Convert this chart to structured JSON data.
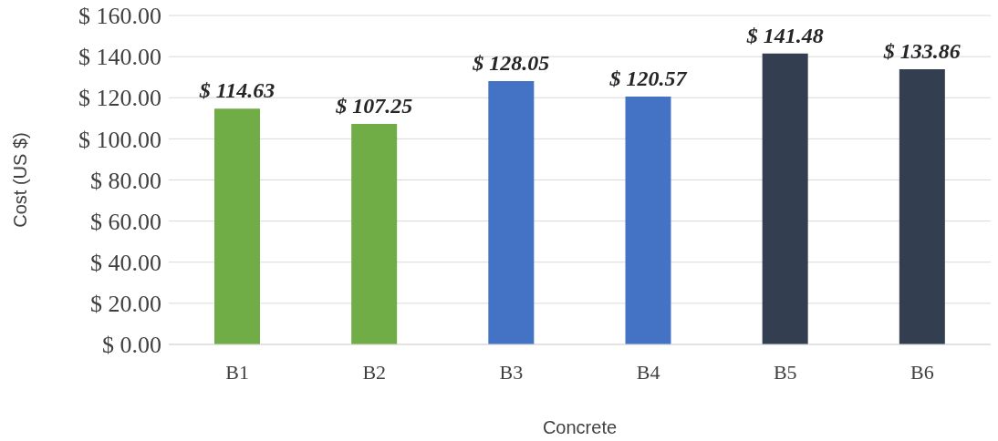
{
  "chart_data": {
    "type": "bar",
    "xlabel": "Concrete",
    "ylabel": "Cost (US $)",
    "categories": [
      "B1",
      "B2",
      "B3",
      "B4",
      "B5",
      "B6"
    ],
    "values": [
      114.63,
      107.25,
      128.05,
      120.57,
      141.48,
      133.86
    ],
    "colors": [
      "#70ad47",
      "#70ad47",
      "#4472c4",
      "#4472c4",
      "#333f50",
      "#333f50"
    ],
    "value_labels": [
      "$ 114.63",
      "$ 107.25",
      "$ 128.05",
      "$ 120.57",
      "$ 141.48",
      "$ 133.86"
    ],
    "ylim": [
      0,
      160
    ],
    "yticks": [
      {
        "value": 0,
        "label": "$ 0.00"
      },
      {
        "value": 20,
        "label": "$ 20.00"
      },
      {
        "value": 40,
        "label": "$ 40.00"
      },
      {
        "value": 60,
        "label": "$ 60.00"
      },
      {
        "value": 80,
        "label": "$ 80.00"
      },
      {
        "value": 100,
        "label": "$ 100.00"
      },
      {
        "value": 120,
        "label": "$ 120.00"
      },
      {
        "value": 140,
        "label": "$ 140.00"
      },
      {
        "value": 160,
        "label": "$ 160.00"
      }
    ],
    "grid": "y",
    "legend": false
  }
}
